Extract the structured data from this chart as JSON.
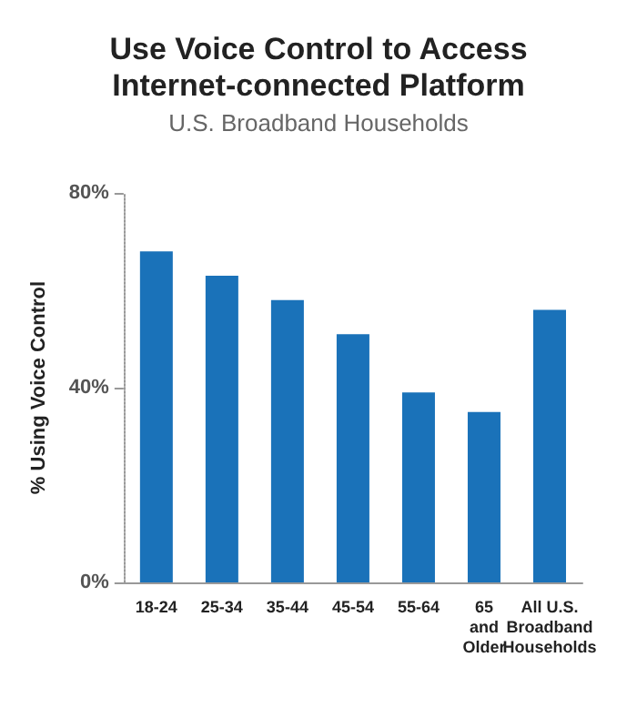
{
  "chart_data": {
    "type": "bar",
    "title": "Use Voice Control to Access\nInternet-connected Platform",
    "subtitle": "U.S. Broadband Households",
    "ylabel": "% Using Voice Control",
    "categories": [
      "18-24",
      "25-34",
      "35-44",
      "45-54",
      "55-64",
      "65\nand\nOlder",
      "All U.S.\nBroadband\nHouseholds"
    ],
    "values": [
      68,
      63,
      58,
      51,
      39,
      35,
      56
    ],
    "color": "#1a72b9",
    "ylim": [
      0,
      80
    ],
    "yticks": [
      {
        "value": 0,
        "label": "0%"
      },
      {
        "value": 40,
        "label": "40%"
      },
      {
        "value": 80,
        "label": "80%"
      }
    ],
    "grid": false
  }
}
